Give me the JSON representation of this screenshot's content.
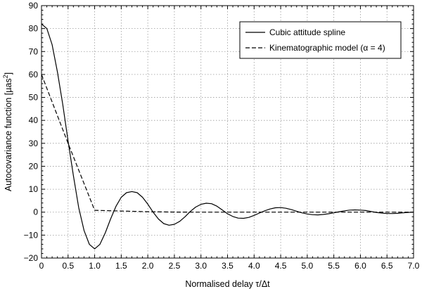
{
  "chart_data": {
    "type": "line",
    "xlabel": "Normalised delay τ/Δt",
    "ylabel": "Autocovariance function [µas²]",
    "ylabel_parts": {
      "main": "Autocovariance function [µas",
      "sup": "2",
      "end": "]"
    },
    "xlim": [
      0,
      7
    ],
    "ylim": [
      -20,
      90
    ],
    "x_ticks": [
      0,
      0.5,
      1,
      1.5,
      2,
      2.5,
      3,
      3.5,
      4,
      4.5,
      5,
      5.5,
      6,
      6.5,
      7
    ],
    "x_tick_labels": [
      "0",
      "0.5",
      "1.0",
      "1.5",
      "2.0",
      "2.5",
      "3.0",
      "3.5",
      "4.0",
      "4.5",
      "5.0",
      "5.5",
      "6.0",
      "6.5",
      "7.0"
    ],
    "y_ticks": [
      -20,
      -10,
      0,
      10,
      20,
      30,
      40,
      50,
      60,
      70,
      80,
      90
    ],
    "y_tick_labels": [
      "−20",
      "−10",
      "0",
      "10",
      "20",
      "30",
      "40",
      "50",
      "60",
      "70",
      "80",
      "90"
    ],
    "grid": true,
    "legend_position": "top-right",
    "series": [
      {
        "name": "Cubic attitude spline",
        "style": "solid",
        "color": "#000000",
        "x": [
          0,
          0.1,
          0.2,
          0.3,
          0.4,
          0.5,
          0.6,
          0.7,
          0.8,
          0.9,
          1.0,
          1.1,
          1.2,
          1.3,
          1.4,
          1.5,
          1.6,
          1.7,
          1.8,
          1.9,
          2.0,
          2.1,
          2.2,
          2.3,
          2.4,
          2.5,
          2.6,
          2.7,
          2.8,
          2.9,
          3.0,
          3.1,
          3.2,
          3.3,
          3.4,
          3.5,
          3.6,
          3.7,
          3.8,
          3.9,
          4.0,
          4.1,
          4.2,
          4.3,
          4.4,
          4.5,
          4.6,
          4.7,
          4.8,
          4.9,
          5.0,
          5.1,
          5.2,
          5.3,
          5.4,
          5.5,
          5.6,
          5.7,
          5.8,
          5.9,
          6.0,
          6.1,
          6.2,
          6.3,
          6.4,
          6.5,
          6.6,
          6.7,
          6.8,
          6.9,
          7.0
        ],
        "y": [
          82,
          80,
          73,
          61,
          47,
          31,
          16,
          2,
          -8,
          -14,
          -16,
          -14,
          -9,
          -3,
          2.5,
          6.5,
          8.5,
          9,
          8.5,
          6.5,
          3.5,
          0,
          -3,
          -5,
          -5.7,
          -5.3,
          -4,
          -2,
          0.3,
          2.2,
          3.4,
          3.9,
          3.7,
          2.6,
          1.0,
          -0.7,
          -1.9,
          -2.6,
          -2.7,
          -2.3,
          -1.4,
          -0.4,
          0.6,
          1.4,
          1.9,
          2.0,
          1.7,
          1.1,
          0.4,
          -0.3,
          -0.8,
          -1.1,
          -1.2,
          -1.0,
          -0.7,
          -0.3,
          0.2,
          0.6,
          0.9,
          1.0,
          0.9,
          0.7,
          0.3,
          -0.1,
          -0.4,
          -0.6,
          -0.6,
          -0.5,
          -0.3,
          -0.1,
          0
        ]
      },
      {
        "name": "Kinematographic model (α = 4)",
        "style": "dashed",
        "color": "#000000",
        "x": [
          0,
          0.5,
          1.0,
          1.5,
          2.0,
          2.5,
          3.0,
          4.0,
          5.0,
          6.0,
          7.0
        ],
        "y": [
          60,
          30,
          0.8,
          0.5,
          0.2,
          0.05,
          0,
          0,
          0,
          0,
          0
        ]
      }
    ]
  }
}
